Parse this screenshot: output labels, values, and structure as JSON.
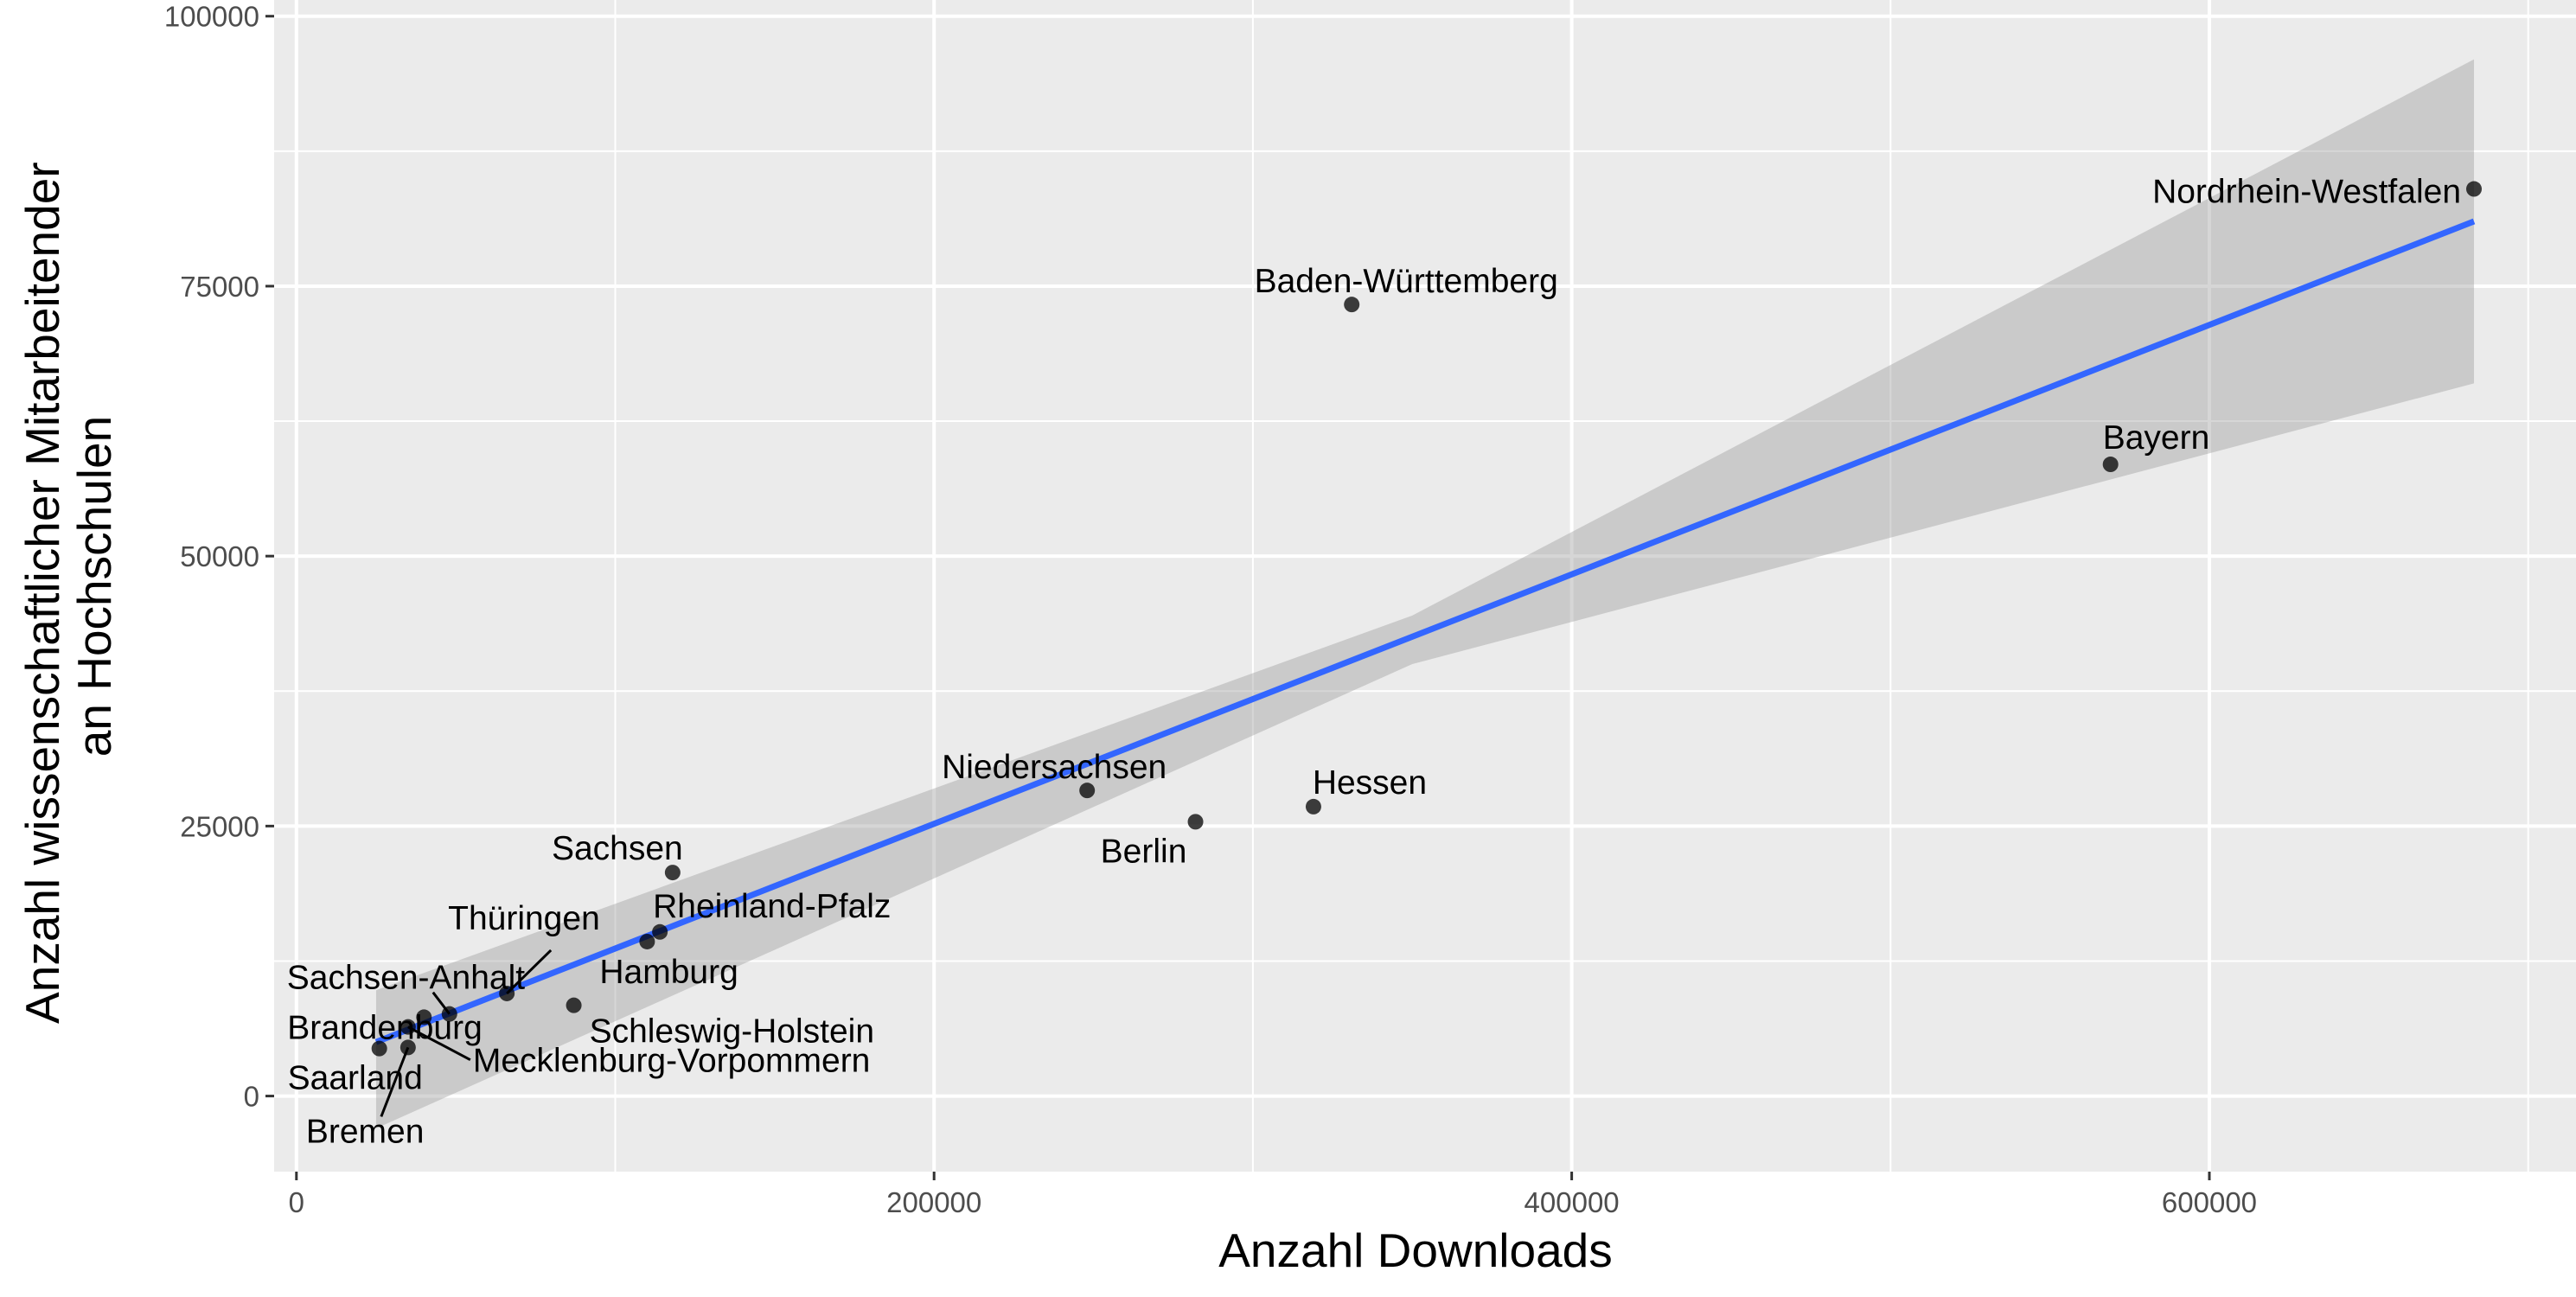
{
  "chart_data": {
    "type": "scatter",
    "title": "",
    "xlabel": "Anzahl Downloads",
    "ylabel": [
      "Anzahl wissenschaftlicher Mitarbeitender",
      "an Hochschulen"
    ],
    "xlim": [
      -7000,
      715000
    ],
    "ylim": [
      -7000,
      101500
    ],
    "x_ticks": [
      0,
      200000,
      400000,
      600000
    ],
    "y_ticks": [
      0,
      25000,
      50000,
      75000,
      100000
    ],
    "x_tick_labels": [
      "0",
      "200000",
      "400000",
      "600000"
    ],
    "y_tick_labels": [
      "0",
      "25000",
      "50000",
      "75000",
      "100000"
    ],
    "grid": true,
    "regression": {
      "method": "linear",
      "x_range": [
        25000,
        683000
      ],
      "line": [
        [
          25000,
          5000
        ],
        [
          683000,
          81000
        ]
      ],
      "ci_lower": [
        [
          25000,
          -3000
        ],
        [
          350000,
          40000
        ],
        [
          683000,
          66000
        ]
      ],
      "ci_upper": [
        [
          25000,
          9800
        ],
        [
          350000,
          44500
        ],
        [
          683000,
          96000
        ]
      ],
      "color": "#3366FF",
      "band_color": "#999999"
    },
    "points": [
      {
        "name": "Nordrhein-Westfalen",
        "x": 683000,
        "y": 84000
      },
      {
        "name": "Baden-Württemberg",
        "x": 331000,
        "y": 73300
      },
      {
        "name": "Bayern",
        "x": 569000,
        "y": 58500
      },
      {
        "name": "Niedersachsen",
        "x": 248000,
        "y": 28300
      },
      {
        "name": "Berlin",
        "x": 282000,
        "y": 25400
      },
      {
        "name": "Hessen",
        "x": 319000,
        "y": 26800
      },
      {
        "name": "Sachsen",
        "x": 118000,
        "y": 20700
      },
      {
        "name": "Rheinland-Pfalz",
        "x": 114000,
        "y": 15200
      },
      {
        "name": "Hamburg",
        "x": 110000,
        "y": 14300
      },
      {
        "name": "Thüringen",
        "x": 66000,
        "y": 9500
      },
      {
        "name": "Schleswig-Holstein",
        "x": 87000,
        "y": 8400
      },
      {
        "name": "Sachsen-Anhalt",
        "x": 48000,
        "y": 7600
      },
      {
        "name": "Brandenburg",
        "x": 40000,
        "y": 7300
      },
      {
        "name": "Mecklenburg-Vorpommern",
        "x": 35000,
        "y": 6400
      },
      {
        "name": "Bremen",
        "x": 35000,
        "y": 4500
      },
      {
        "name": "Saarland",
        "x": 26000,
        "y": 4400
      }
    ]
  }
}
